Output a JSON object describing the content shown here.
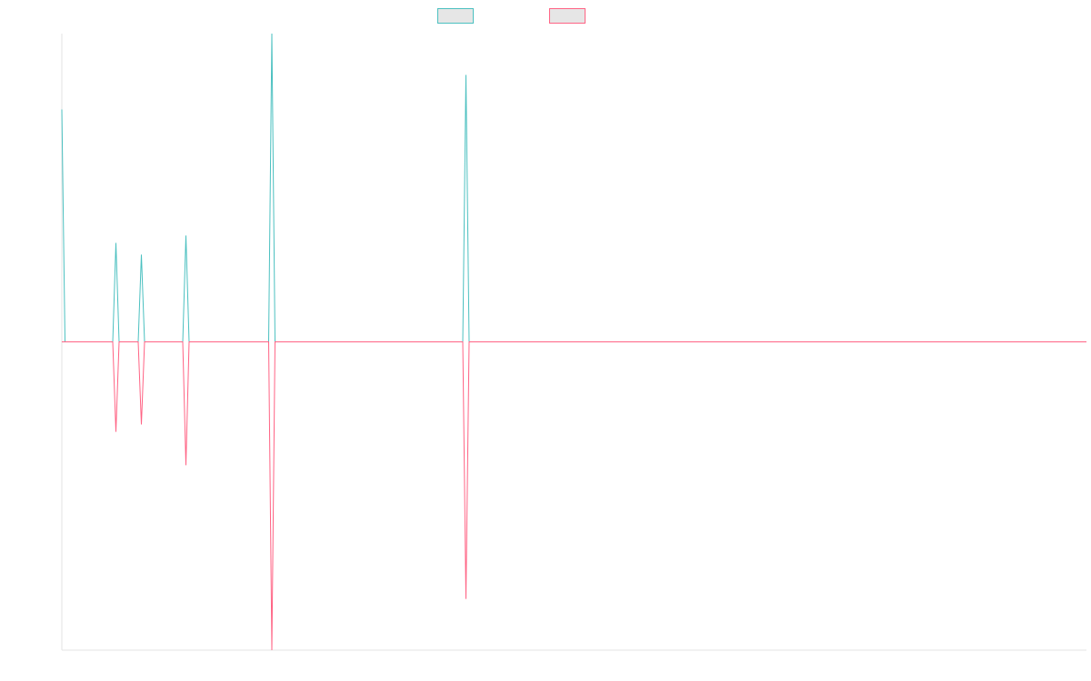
{
  "chart_data": {
    "type": "line",
    "x": [
      0,
      1,
      16,
      17,
      18,
      24,
      25,
      26,
      38,
      39,
      40,
      65,
      66,
      67,
      126,
      127,
      128,
      322
    ],
    "series": [
      {
        "color": "#4bc0c0",
        "values": [
          75.4,
          0,
          0,
          32.1,
          0,
          0,
          28.3,
          0,
          0,
          34.5,
          0,
          0,
          100,
          0,
          0,
          86.6,
          0,
          0
        ]
      },
      {
        "color": "#ff6384",
        "values": [
          0,
          0,
          0,
          -29.2,
          0,
          0,
          -26.8,
          0,
          0,
          -40,
          0,
          0,
          -100,
          0,
          0,
          -83.4,
          0,
          0
        ]
      }
    ],
    "xlim": [
      0,
      322
    ],
    "ylim": [
      -100,
      100
    ]
  }
}
